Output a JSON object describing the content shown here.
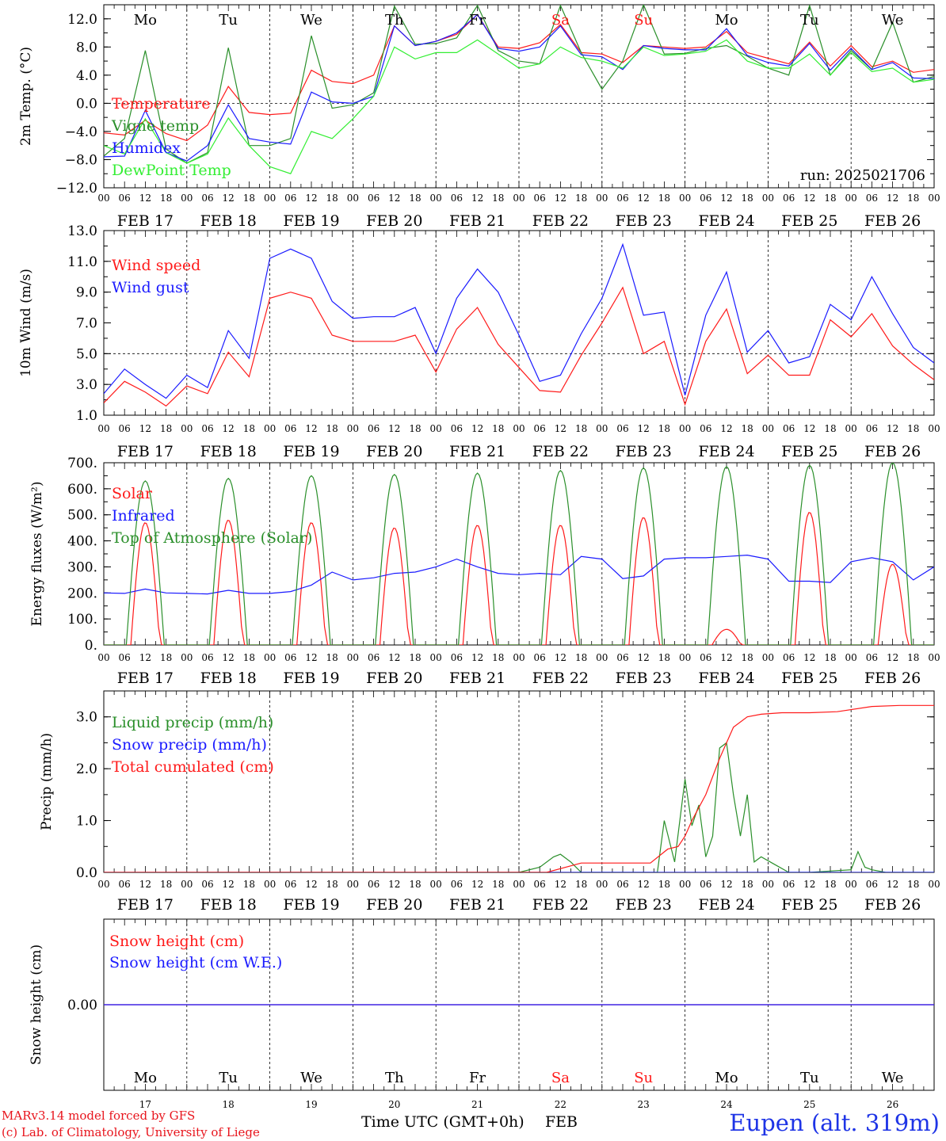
{
  "footer": {
    "model": "MARv3.14 model forced by GFS",
    "lab": "(c) Lab. of Climatology, University of Liege",
    "xlabel": "Time UTC (GMT+0h)",
    "month": "FEB",
    "station": "Eupen (alt. 319m)"
  },
  "colors": {
    "red": "#ff1a1a",
    "darkgreen": "#2a8f2a",
    "blue": "#1a1aff",
    "lightgreen": "#33ee33",
    "weekend": "#ff1a1a",
    "text": "#000000"
  },
  "days": {
    "weekdays": [
      "Mo",
      "Tu",
      "We",
      "Th",
      "Fr",
      "Sa",
      "Su",
      "Mo",
      "Tu",
      "We"
    ],
    "weekend_flags": [
      false,
      false,
      false,
      false,
      false,
      true,
      true,
      false,
      false,
      false
    ],
    "dates": [
      "FEB 17",
      "FEB 18",
      "FEB 19",
      "FEB 20",
      "FEB 21",
      "FEB 22",
      "FEB 23",
      "FEB 24",
      "FEB 25",
      "FEB 26"
    ],
    "day_numbers": [
      "17",
      "18",
      "19",
      "20",
      "21",
      "22",
      "23",
      "24",
      "25",
      "26"
    ],
    "hour_labels": [
      "00",
      "06",
      "12",
      "18"
    ],
    "final_hour_label": "00"
  },
  "chart_data": [
    {
      "type": "line",
      "ylabel": "2m Temp. (°C)",
      "ylim": [
        -12,
        14
      ],
      "yticks": [
        "12.0",
        "8.0",
        "4.0",
        "0.0",
        "−4.0",
        "−8.0",
        "−12.0"
      ],
      "ytick_values": [
        12,
        8,
        4,
        0,
        -4,
        -8,
        -12
      ],
      "refline": 0,
      "annotation": "run: 2025021706",
      "x_unit": "hours since FEB 17 00 UTC",
      "series": [
        {
          "name": "Temperature",
          "color": "#ff1a1a",
          "x": [
            0,
            6,
            12,
            18,
            24,
            30,
            36,
            42,
            48,
            54,
            60,
            66,
            72,
            78,
            84,
            90,
            96,
            102,
            108,
            114,
            120,
            126,
            132,
            138,
            144,
            150,
            156,
            162,
            168,
            174,
            180,
            186,
            192,
            198,
            204,
            210,
            216,
            222,
            228,
            234,
            240
          ],
          "y": [
            -4.2,
            -4.5,
            -2.4,
            -4.3,
            -5.3,
            -3.1,
            2.4,
            -1.3,
            -1.6,
            -1.4,
            4.7,
            3.1,
            2.8,
            4.0,
            11.0,
            8.2,
            8.8,
            9.8,
            12.6,
            8.0,
            7.8,
            8.6,
            11.2,
            7.2,
            7.0,
            5.8,
            8.2,
            8.0,
            7.8,
            8.0,
            10.2,
            7.2,
            6.4,
            5.6,
            8.7,
            5.3,
            8.2,
            5.2,
            6.0,
            4.4,
            4.8
          ]
        },
        {
          "name": "Vigne temp",
          "color": "#2a8f2a",
          "x": [
            0,
            6,
            12,
            18,
            24,
            30,
            36,
            42,
            48,
            54,
            60,
            66,
            72,
            78,
            84,
            90,
            96,
            102,
            108,
            114,
            120,
            126,
            132,
            138,
            144,
            150,
            156,
            162,
            168,
            174,
            180,
            186,
            192,
            198,
            204,
            210,
            216,
            222,
            228,
            234,
            240
          ],
          "y": [
            -7.5,
            -5.0,
            7.5,
            -6.5,
            -8.5,
            -7.0,
            7.9,
            -6.0,
            -6.0,
            -5.0,
            9.6,
            -0.7,
            -0.2,
            1.5,
            13.8,
            8.4,
            8.5,
            9.3,
            13.9,
            7.5,
            6.0,
            5.6,
            13.9,
            7.2,
            2.0,
            6.0,
            14.0,
            7.0,
            7.1,
            7.8,
            8.2,
            6.7,
            5.0,
            4.0,
            13.9,
            4.0,
            7.5,
            4.8,
            11.5,
            3.0,
            3.8
          ]
        },
        {
          "name": "Humidex",
          "color": "#1a1aff",
          "x": [
            0,
            6,
            12,
            18,
            24,
            30,
            36,
            42,
            48,
            54,
            60,
            66,
            72,
            78,
            84,
            90,
            96,
            102,
            108,
            114,
            120,
            126,
            132,
            138,
            144,
            150,
            156,
            162,
            168,
            174,
            180,
            186,
            192,
            198,
            204,
            210,
            216,
            222,
            228,
            234,
            240
          ],
          "y": [
            -7.6,
            -7.5,
            -1.0,
            -7.0,
            -8.2,
            -6.0,
            -0.2,
            -5.0,
            -5.5,
            -5.8,
            1.6,
            0.2,
            0.0,
            1.0,
            11.0,
            8.2,
            8.8,
            10.0,
            12.6,
            7.8,
            7.4,
            8.0,
            11.0,
            6.9,
            6.6,
            4.8,
            8.2,
            7.8,
            7.6,
            7.6,
            10.6,
            6.8,
            5.8,
            5.3,
            8.5,
            4.7,
            7.8,
            4.8,
            5.8,
            3.6,
            3.5
          ]
        },
        {
          "name": "DewPoint Temp",
          "color": "#33ee33",
          "x": [
            0,
            6,
            12,
            18,
            24,
            30,
            36,
            42,
            48,
            54,
            60,
            66,
            72,
            78,
            84,
            90,
            96,
            102,
            108,
            114,
            120,
            126,
            132,
            138,
            144,
            150,
            156,
            162,
            168,
            174,
            180,
            186,
            192,
            198,
            204,
            210,
            216,
            222,
            228,
            234,
            240
          ],
          "y": [
            -6.0,
            -7.2,
            -2.2,
            -7.0,
            -8.5,
            -7.2,
            -2.1,
            -6.0,
            -9.0,
            -10.0,
            -4.0,
            -5.0,
            -2.2,
            1.0,
            8.0,
            6.3,
            7.2,
            7.2,
            9.0,
            7.0,
            5.0,
            5.6,
            8.0,
            6.5,
            6.0,
            5.0,
            8.0,
            6.8,
            7.0,
            7.4,
            9.0,
            6.0,
            5.0,
            5.0,
            7.0,
            4.0,
            7.2,
            4.5,
            5.0,
            3.0,
            3.4
          ]
        }
      ]
    },
    {
      "type": "line",
      "ylabel": "10m Wind (m/s)",
      "ylim": [
        1,
        13
      ],
      "yticks": [
        "13.0",
        "11.0",
        "9.0",
        "7.0",
        "5.0",
        "3.0",
        "1.0"
      ],
      "ytick_values": [
        13,
        11,
        9,
        7,
        5,
        3,
        1
      ],
      "refline": 5,
      "x_unit": "hours since FEB 17 00 UTC",
      "series": [
        {
          "name": "Wind speed",
          "color": "#ff1a1a",
          "x": [
            0,
            6,
            12,
            18,
            24,
            30,
            36,
            42,
            48,
            54,
            60,
            66,
            72,
            78,
            84,
            90,
            96,
            102,
            108,
            114,
            120,
            126,
            132,
            138,
            144,
            150,
            156,
            162,
            168,
            174,
            180,
            186,
            192,
            198,
            204,
            210,
            216,
            222,
            228,
            234,
            240
          ],
          "y": [
            1.8,
            3.2,
            2.5,
            1.6,
            2.9,
            2.4,
            5.1,
            3.5,
            8.6,
            9.0,
            8.6,
            6.2,
            5.8,
            5.8,
            5.8,
            6.2,
            3.8,
            6.6,
            8.0,
            5.6,
            4.1,
            2.6,
            2.5,
            4.9,
            7.0,
            9.3,
            5.0,
            5.8,
            1.7,
            5.8,
            7.9,
            3.7,
            4.9,
            3.6,
            3.6,
            7.2,
            6.1,
            7.6,
            5.5,
            4.3,
            3.3
          ]
        },
        {
          "name": "Wind gust",
          "color": "#1a1aff",
          "x": [
            0,
            6,
            12,
            18,
            24,
            30,
            36,
            42,
            48,
            54,
            60,
            66,
            72,
            78,
            84,
            90,
            96,
            102,
            108,
            114,
            120,
            126,
            132,
            138,
            144,
            150,
            156,
            162,
            168,
            174,
            180,
            186,
            192,
            198,
            204,
            210,
            216,
            222,
            228,
            234,
            240
          ],
          "y": [
            2.4,
            4.0,
            3.0,
            2.1,
            3.6,
            2.8,
            6.5,
            4.7,
            11.2,
            11.8,
            11.2,
            8.4,
            7.3,
            7.4,
            7.4,
            8.0,
            5.0,
            8.6,
            10.5,
            9.0,
            6.2,
            3.2,
            3.6,
            6.3,
            8.6,
            12.1,
            7.5,
            7.7,
            2.3,
            7.5,
            10.3,
            5.1,
            6.5,
            4.4,
            4.8,
            8.2,
            7.2,
            10.0,
            7.6,
            5.4,
            4.4
          ]
        }
      ]
    },
    {
      "type": "line",
      "ylabel": "Energy fluxes (W/m²)",
      "ylim": [
        0,
        700
      ],
      "yticks": [
        "700.",
        "600.",
        "500.",
        "400.",
        "300.",
        "200.",
        "100.",
        "0."
      ],
      "ytick_values": [
        700,
        600,
        500,
        400,
        300,
        200,
        100,
        0
      ],
      "x_unit": "hours since FEB 17 00 UTC",
      "series": [
        {
          "name": "Solar",
          "color": "#ff1a1a",
          "peaks": [
            470,
            480,
            470,
            450,
            460,
            460,
            490,
            60,
            510,
            310
          ]
        },
        {
          "name": "Infrared",
          "color": "#1a1aff",
          "x": [
            0,
            6,
            12,
            18,
            24,
            30,
            36,
            42,
            48,
            54,
            60,
            66,
            72,
            78,
            84,
            90,
            96,
            102,
            108,
            114,
            120,
            126,
            132,
            138,
            144,
            150,
            156,
            162,
            168,
            174,
            180,
            186,
            192,
            198,
            204,
            210,
            216,
            222,
            228,
            234,
            240
          ],
          "y": [
            200,
            198,
            215,
            200,
            198,
            196,
            210,
            198,
            198,
            205,
            230,
            280,
            250,
            258,
            275,
            280,
            300,
            330,
            300,
            275,
            270,
            275,
            270,
            340,
            330,
            255,
            265,
            330,
            335,
            335,
            340,
            345,
            330,
            245,
            245,
            240,
            320,
            335,
            320,
            250,
            300
          ]
        },
        {
          "name": "Top of Atmosphere (Solar)",
          "color": "#2a8f2a",
          "peaks": [
            630,
            640,
            650,
            655,
            660,
            670,
            680,
            685,
            690,
            700
          ]
        }
      ]
    },
    {
      "type": "line",
      "ylabel": "Precip (mm/h)",
      "ylim": [
        0,
        3.5
      ],
      "yticks": [
        "3.0",
        "2.0",
        "1.0",
        "0.0"
      ],
      "ytick_values": [
        3.0,
        2.0,
        1.0,
        0.0
      ],
      "x_unit": "hours since FEB 17 00 UTC",
      "series": [
        {
          "name": "Liquid precip (mm/h)",
          "color": "#2a8f2a",
          "x": [
            0,
            108,
            120,
            126,
            130,
            132,
            135,
            138,
            150,
            160,
            162,
            165,
            168,
            170,
            172,
            174,
            176,
            178,
            180,
            182,
            184,
            186,
            188,
            190,
            194,
            198,
            204,
            216,
            218,
            220,
            222,
            226,
            240
          ],
          "y": [
            0,
            0,
            0,
            0.1,
            0.3,
            0.35,
            0.2,
            0,
            0,
            0,
            1.0,
            0.2,
            1.8,
            0.9,
            1.3,
            0.3,
            0.7,
            2.4,
            2.5,
            1.5,
            0.7,
            1.5,
            0.2,
            0.3,
            0.15,
            0,
            0,
            0.05,
            0.4,
            0.1,
            0.05,
            0,
            0
          ]
        },
        {
          "name": "Snow precip (mm/h)",
          "color": "#1a1aff",
          "x": [
            0,
            240
          ],
          "y": [
            0,
            0
          ]
        },
        {
          "name": "Total cumulated (cm)",
          "color": "#ff1a1a",
          "x": [
            0,
            128,
            138,
            148,
            158,
            163,
            166,
            168,
            170,
            174,
            178,
            182,
            186,
            190,
            196,
            204,
            212,
            222,
            230,
            240
          ],
          "y": [
            0,
            0,
            0.18,
            0.18,
            0.18,
            0.45,
            0.5,
            0.7,
            1.0,
            1.5,
            2.2,
            2.8,
            3.0,
            3.05,
            3.08,
            3.08,
            3.1,
            3.2,
            3.22,
            3.22
          ]
        }
      ]
    },
    {
      "type": "line",
      "ylabel": "Snow height (cm)",
      "ylim": [
        -1,
        1
      ],
      "yticks": [
        "0.00"
      ],
      "ytick_values": [
        0
      ],
      "x_unit": "hours since FEB 17 00 UTC",
      "series": [
        {
          "name": "Snow height (cm)",
          "color": "#ff1a1a",
          "x": [
            0,
            240
          ],
          "y": [
            0,
            0
          ]
        },
        {
          "name": "Snow height (cm W.E.)",
          "color": "#1a1aff",
          "x": [
            0,
            240
          ],
          "y": [
            0,
            0
          ]
        }
      ]
    }
  ]
}
